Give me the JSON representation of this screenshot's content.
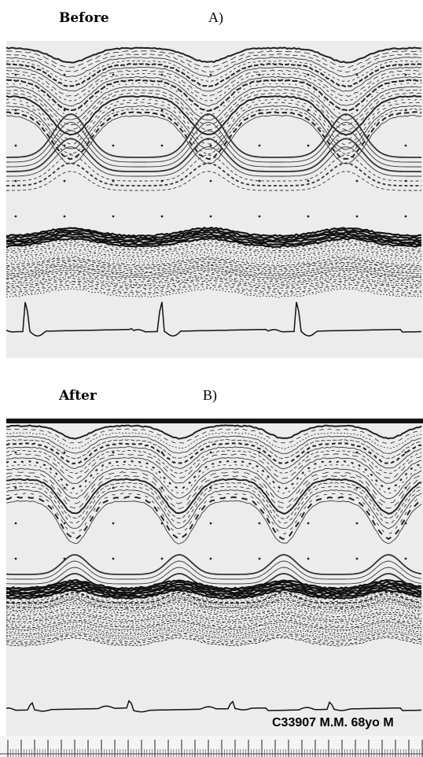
{
  "panel_a": {
    "title": "Before",
    "label": "A)"
  },
  "panel_b": {
    "title": "After",
    "label": "B)",
    "caption": "C33907 M.M. 68yo M"
  }
}
